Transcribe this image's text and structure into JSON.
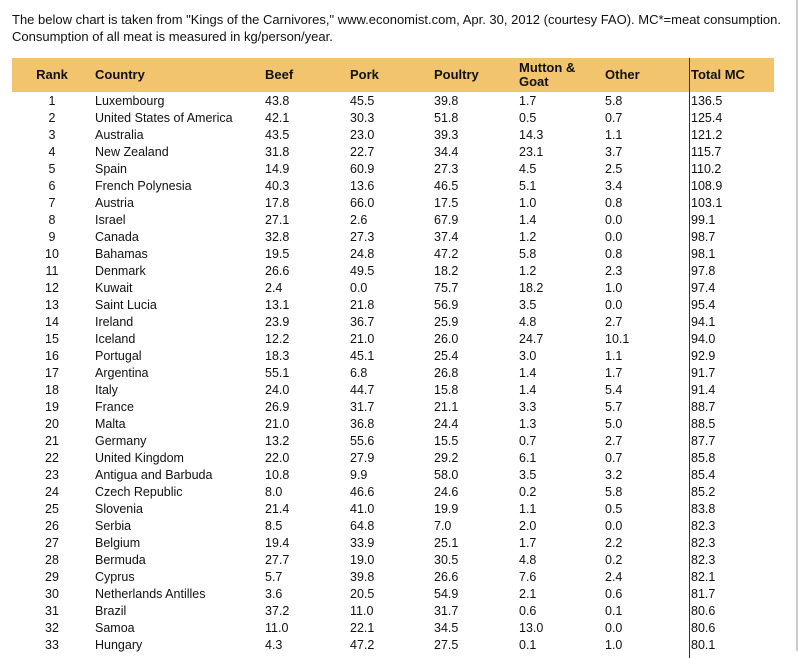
{
  "intro": "The below chart is taken from \"Kings of the Carnivores,\" www.economist.com, Apr. 30, 2012 (courtesy FAO). MC*=meat consumption. Consumption of all meat is measured in kg/person/year.",
  "table": {
    "header": [
      "Rank",
      "Country",
      "Beef",
      "Pork",
      "Poultry",
      "Mutton & Goat",
      "Other",
      "Total MC"
    ],
    "rows": [
      [
        "1",
        "Luxembourg",
        "43.8",
        "45.5",
        "39.8",
        "1.7",
        "5.8",
        "136.5"
      ],
      [
        "2",
        "United States of America",
        "42.1",
        "30.3",
        "51.8",
        "0.5",
        "0.7",
        "125.4"
      ],
      [
        "3",
        "Australia",
        "43.5",
        "23.0",
        "39.3",
        "14.3",
        "1.1",
        "121.2"
      ],
      [
        "4",
        "New Zealand",
        "31.8",
        "22.7",
        "34.4",
        "23.1",
        "3.7",
        "115.7"
      ],
      [
        "5",
        "Spain",
        "14.9",
        "60.9",
        "27.3",
        "4.5",
        "2.5",
        "110.2"
      ],
      [
        "6",
        "French Polynesia",
        "40.3",
        "13.6",
        "46.5",
        "5.1",
        "3.4",
        "108.9"
      ],
      [
        "7",
        "Austria",
        "17.8",
        "66.0",
        "17.5",
        "1.0",
        "0.8",
        "103.1"
      ],
      [
        "8",
        "Israel",
        "27.1",
        "2.6",
        "67.9",
        "1.4",
        "0.0",
        "99.1"
      ],
      [
        "9",
        "Canada",
        "32.8",
        "27.3",
        "37.4",
        "1.2",
        "0.0",
        "98.7"
      ],
      [
        "10",
        "Bahamas",
        "19.5",
        "24.8",
        "47.2",
        "5.8",
        "0.8",
        "98.1"
      ],
      [
        "11",
        "Denmark",
        "26.6",
        "49.5",
        "18.2",
        "1.2",
        "2.3",
        "97.8"
      ],
      [
        "12",
        "Kuwait",
        "2.4",
        "0.0",
        "75.7",
        "18.2",
        "1.0",
        "97.4"
      ],
      [
        "13",
        "Saint Lucia",
        "13.1",
        "21.8",
        "56.9",
        "3.5",
        "0.0",
        "95.4"
      ],
      [
        "14",
        "Ireland",
        "23.9",
        "36.7",
        "25.9",
        "4.8",
        "2.7",
        "94.1"
      ],
      [
        "15",
        "Iceland",
        "12.2",
        "21.0",
        "26.0",
        "24.7",
        "10.1",
        "94.0"
      ],
      [
        "16",
        "Portugal",
        "18.3",
        "45.1",
        "25.4",
        "3.0",
        "1.1",
        "92.9"
      ],
      [
        "17",
        "Argentina",
        "55.1",
        "6.8",
        "26.8",
        "1.4",
        "1.7",
        "91.7"
      ],
      [
        "18",
        "Italy",
        "24.0",
        "44.7",
        "15.8",
        "1.4",
        "5.4",
        "91.4"
      ],
      [
        "19",
        "France",
        "26.9",
        "31.7",
        "21.1",
        "3.3",
        "5.7",
        "88.7"
      ],
      [
        "20",
        "Malta",
        "21.0",
        "36.8",
        "24.4",
        "1.3",
        "5.0",
        "88.5"
      ],
      [
        "21",
        "Germany",
        "13.2",
        "55.6",
        "15.5",
        "0.7",
        "2.7",
        "87.7"
      ],
      [
        "22",
        "United Kingdom",
        "22.0",
        "27.9",
        "29.2",
        "6.1",
        "0.7",
        "85.8"
      ],
      [
        "23",
        "Antigua and Barbuda",
        "10.8",
        "9.9",
        "58.0",
        "3.5",
        "3.2",
        "85.4"
      ],
      [
        "24",
        "Czech Republic",
        "8.0",
        "46.6",
        "24.6",
        "0.2",
        "5.8",
        "85.2"
      ],
      [
        "25",
        "Slovenia",
        "21.4",
        "41.0",
        "19.9",
        "1.1",
        "0.5",
        "83.8"
      ],
      [
        "26",
        "Serbia",
        "8.5",
        "64.8",
        "7.0",
        "2.0",
        "0.0",
        "82.3"
      ],
      [
        "27",
        "Belgium",
        "19.4",
        "33.9",
        "25.1",
        "1.7",
        "2.2",
        "82.3"
      ],
      [
        "28",
        "Bermuda",
        "27.7",
        "19.0",
        "30.5",
        "4.8",
        "0.2",
        "82.3"
      ],
      [
        "29",
        "Cyprus",
        "5.7",
        "39.8",
        "26.6",
        "7.6",
        "2.4",
        "82.1"
      ],
      [
        "30",
        "Netherlands Antilles",
        "3.6",
        "20.5",
        "54.9",
        "2.1",
        "0.6",
        "81.7"
      ],
      [
        "31",
        "Brazil",
        "37.2",
        "11.0",
        "31.7",
        "0.6",
        "0.1",
        "80.6"
      ],
      [
        "32",
        "Samoa",
        "11.0",
        "22.1",
        "34.5",
        "13.0",
        "0.0",
        "80.6"
      ],
      [
        "33",
        "Hungary",
        "4.3",
        "47.2",
        "27.5",
        "0.1",
        "1.0",
        "80.1"
      ]
    ]
  }
}
